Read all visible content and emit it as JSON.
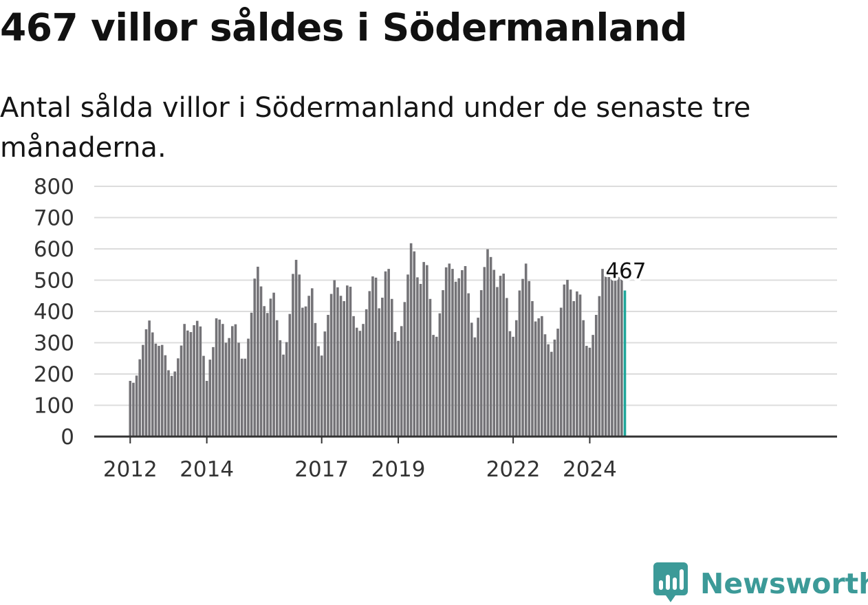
{
  "header": {
    "title": "467 villor såldes i Södermanland",
    "subtitle": "Antal sålda villor i Södermanland under de senaste tre månaderna."
  },
  "brand": {
    "name": "Newsworthy",
    "color": "#3c9a98",
    "icon": "bar-chart-badge-icon"
  },
  "colors": {
    "bar": "#747377",
    "highlight": "#1fa69a",
    "grid": "#dcdcdc",
    "axis": "#333333"
  },
  "chart_data": {
    "type": "bar",
    "title": "467 villor såldes i Södermanland",
    "subtitle": "Antal sålda villor i Södermanland under de senaste tre månaderna.",
    "xlabel": "",
    "ylabel": "",
    "ylim": [
      0,
      800
    ],
    "yticks": [
      0,
      100,
      200,
      300,
      400,
      500,
      600,
      700,
      800
    ],
    "grid": true,
    "xticks": [
      {
        "label": "2012",
        "year": 2012
      },
      {
        "label": "2014",
        "year": 2014
      },
      {
        "label": "2017",
        "year": 2017
      },
      {
        "label": "2019",
        "year": 2019
      },
      {
        "label": "2022",
        "year": 2022
      },
      {
        "label": "2024",
        "year": 2024
      }
    ],
    "start_period": "2012-01",
    "periods": [
      {
        "year": 2012,
        "values": [
          178,
          172,
          195,
          247,
          293,
          343,
          371,
          333,
          297,
          290,
          293,
          260
        ]
      },
      {
        "year": 2013,
        "values": [
          212,
          194,
          208,
          250,
          291,
          360,
          339,
          334,
          356,
          370,
          352,
          258
        ]
      },
      {
        "year": 2014,
        "values": [
          178,
          246,
          286,
          378,
          374,
          360,
          300,
          315,
          353,
          359,
          300,
          249
        ]
      },
      {
        "year": 2015,
        "values": [
          249,
          313,
          396,
          505,
          543,
          480,
          417,
          395,
          441,
          460,
          372,
          308
        ]
      },
      {
        "year": 2016,
        "values": [
          262,
          302,
          392,
          520,
          565,
          518,
          412,
          416,
          450,
          474,
          363,
          289
        ]
      },
      {
        "year": 2017,
        "values": [
          259,
          336,
          389,
          456,
          500,
          477,
          450,
          433,
          483,
          479,
          385,
          348
        ]
      },
      {
        "year": 2018,
        "values": [
          338,
          360,
          407,
          465,
          512,
          508,
          410,
          444,
          528,
          536,
          440,
          334
        ]
      },
      {
        "year": 2019,
        "values": [
          306,
          353,
          430,
          518,
          618,
          592,
          509,
          488,
          558,
          548,
          440,
          325
        ]
      },
      {
        "year": 2020,
        "values": [
          319,
          394,
          468,
          541,
          553,
          536,
          495,
          506,
          532,
          545,
          458,
          364
        ]
      },
      {
        "year": 2021,
        "values": [
          317,
          380,
          468,
          542,
          599,
          574,
          533,
          478,
          514,
          521,
          443,
          337
        ]
      },
      {
        "year": 2022,
        "values": [
          319,
          372,
          467,
          504,
          553,
          497,
          433,
          368,
          378,
          385,
          327,
          295
        ]
      },
      {
        "year": 2023,
        "values": [
          271,
          310,
          345,
          412,
          486,
          501,
          470,
          433,
          464,
          454,
          372,
          290
        ]
      },
      {
        "year": 2024,
        "values": [
          284,
          325,
          389,
          449,
          536,
          513,
          519,
          505,
          501,
          513,
          504,
          467
        ]
      }
    ],
    "highlight": {
      "label": "467",
      "value": 467,
      "index": "last"
    }
  }
}
